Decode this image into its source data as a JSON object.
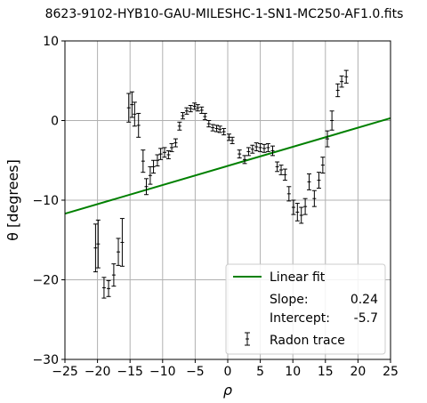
{
  "chart_data": {
    "type": "scatter",
    "title": "8623-9102-HYB10-GAU-MILESHC-1-SN1-MC250-AF1.0.fits",
    "xlabel": "ρ",
    "ylabel": "θ [degrees]",
    "xlim": [
      -25,
      25
    ],
    "ylim": [
      -30,
      10
    ],
    "xticks": [
      -25,
      -20,
      -15,
      -10,
      -5,
      0,
      5,
      10,
      15,
      20,
      25
    ],
    "xtick_labels": [
      "−25",
      "−20",
      "−15",
      "−10",
      "−5",
      "0",
      "5",
      "10",
      "15",
      "20",
      "25"
    ],
    "yticks": [
      -30,
      -20,
      -10,
      0,
      10
    ],
    "ytick_labels": [
      "−30",
      "−20",
      "−10",
      "0",
      "10"
    ],
    "grid": true,
    "legend_position": "lower-right",
    "fit": {
      "label": "Linear fit",
      "slope": 0.24,
      "intercept": -5.7,
      "slope_label": "Slope:",
      "slope_value": "0.24",
      "intercept_label": "Intercept:",
      "intercept_value": "-5.7",
      "color": "#008000"
    },
    "series": [
      {
        "name": "Radon trace",
        "color": "#000000",
        "points": [
          {
            "x": -20.3,
            "y": -16.0,
            "err": 3.0
          },
          {
            "x": -19.9,
            "y": -15.5,
            "err": 3.0
          },
          {
            "x": -19.0,
            "y": -21.0,
            "err": 1.3
          },
          {
            "x": -18.3,
            "y": -21.1,
            "err": 1.0
          },
          {
            "x": -17.5,
            "y": -19.4,
            "err": 1.4
          },
          {
            "x": -16.8,
            "y": -16.5,
            "err": 1.7
          },
          {
            "x": -16.2,
            "y": -15.3,
            "err": 3.0
          },
          {
            "x": -15.2,
            "y": 1.6,
            "err": 1.8
          },
          {
            "x": -14.7,
            "y": 2.0,
            "err": 1.6
          },
          {
            "x": -14.3,
            "y": 0.8,
            "err": 1.5
          },
          {
            "x": -13.7,
            "y": -0.6,
            "err": 1.5
          },
          {
            "x": -13.0,
            "y": -5.1,
            "err": 1.4
          },
          {
            "x": -12.5,
            "y": -8.3,
            "err": 1.0
          },
          {
            "x": -11.9,
            "y": -6.9,
            "err": 1.1
          },
          {
            "x": -11.4,
            "y": -5.8,
            "err": 0.8
          },
          {
            "x": -10.8,
            "y": -5.0,
            "err": 0.7
          },
          {
            "x": -10.3,
            "y": -4.2,
            "err": 0.7
          },
          {
            "x": -9.7,
            "y": -4.0,
            "err": 0.6
          },
          {
            "x": -9.1,
            "y": -4.3,
            "err": 0.5
          },
          {
            "x": -8.6,
            "y": -3.4,
            "err": 0.5
          },
          {
            "x": -8.0,
            "y": -2.8,
            "err": 0.5
          },
          {
            "x": -7.4,
            "y": -0.7,
            "err": 0.5
          },
          {
            "x": -6.9,
            "y": 0.6,
            "err": 0.4
          },
          {
            "x": -6.3,
            "y": 1.2,
            "err": 0.4
          },
          {
            "x": -5.7,
            "y": 1.5,
            "err": 0.4
          },
          {
            "x": -5.1,
            "y": 1.8,
            "err": 0.4
          },
          {
            "x": -4.6,
            "y": 1.6,
            "err": 0.4
          },
          {
            "x": -4.0,
            "y": 1.3,
            "err": 0.4
          },
          {
            "x": -3.5,
            "y": 0.5,
            "err": 0.4
          },
          {
            "x": -2.9,
            "y": -0.4,
            "err": 0.4
          },
          {
            "x": -2.3,
            "y": -0.9,
            "err": 0.4
          },
          {
            "x": -1.7,
            "y": -1.0,
            "err": 0.4
          },
          {
            "x": -1.2,
            "y": -1.1,
            "err": 0.4
          },
          {
            "x": -0.6,
            "y": -1.4,
            "err": 0.4
          },
          {
            "x": 0.2,
            "y": -2.1,
            "err": 0.4
          },
          {
            "x": 0.7,
            "y": -2.5,
            "err": 0.4
          },
          {
            "x": 1.8,
            "y": -4.2,
            "err": 0.5
          },
          {
            "x": 2.6,
            "y": -4.9,
            "err": 0.5
          },
          {
            "x": 3.2,
            "y": -3.9,
            "err": 0.5
          },
          {
            "x": 3.8,
            "y": -3.6,
            "err": 0.5
          },
          {
            "x": 4.4,
            "y": -3.3,
            "err": 0.5
          },
          {
            "x": 5.0,
            "y": -3.4,
            "err": 0.5
          },
          {
            "x": 5.6,
            "y": -3.5,
            "err": 0.5
          },
          {
            "x": 6.2,
            "y": -3.4,
            "err": 0.5
          },
          {
            "x": 6.9,
            "y": -3.8,
            "err": 0.6
          },
          {
            "x": 7.6,
            "y": -5.8,
            "err": 0.6
          },
          {
            "x": 8.2,
            "y": -6.2,
            "err": 0.6
          },
          {
            "x": 8.8,
            "y": -6.8,
            "err": 0.7
          },
          {
            "x": 9.4,
            "y": -9.2,
            "err": 0.9
          },
          {
            "x": 10.1,
            "y": -10.9,
            "err": 0.9
          },
          {
            "x": 10.7,
            "y": -11.5,
            "err": 1.1
          },
          {
            "x": 11.3,
            "y": -11.9,
            "err": 1.0
          },
          {
            "x": 11.9,
            "y": -10.8,
            "err": 1.0
          },
          {
            "x": 12.5,
            "y": -7.7,
            "err": 1.0
          },
          {
            "x": 13.3,
            "y": -9.8,
            "err": 1.0
          },
          {
            "x": 14.0,
            "y": -7.5,
            "err": 1.0
          },
          {
            "x": 14.6,
            "y": -5.6,
            "err": 1.0
          },
          {
            "x": 15.3,
            "y": -2.3,
            "err": 1.0
          },
          {
            "x": 16.0,
            "y": 0.0,
            "err": 1.2
          },
          {
            "x": 16.9,
            "y": 3.8,
            "err": 0.8
          },
          {
            "x": 17.5,
            "y": 4.9,
            "err": 0.7
          },
          {
            "x": 18.2,
            "y": 5.5,
            "err": 0.8
          }
        ]
      }
    ]
  }
}
